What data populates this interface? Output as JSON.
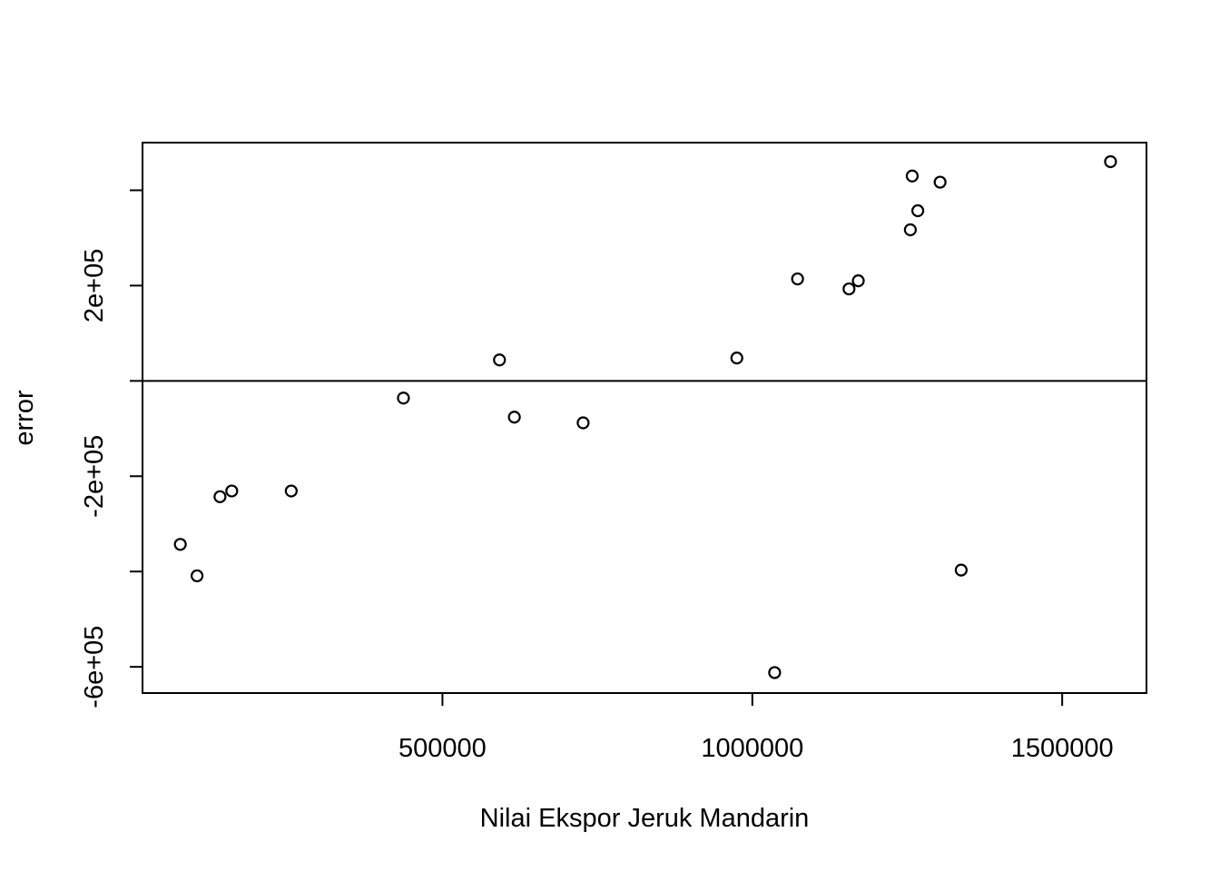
{
  "chart_data": {
    "type": "scatter",
    "title": "",
    "xlabel": "Nilai Ekspor Jeruk Mandarin",
    "ylabel": "error",
    "xlim": [
      16000,
      1636000
    ],
    "ylim": [
      -655000,
      500000
    ],
    "x_ticks": [
      500000,
      1000000,
      1500000
    ],
    "x_tick_labels": [
      "500000",
      "1000000",
      "1500000"
    ],
    "y_ticks": [
      -600000,
      -400000,
      -200000,
      0,
      200000,
      400000
    ],
    "y_tick_labels": [
      "-6e+05",
      "",
      "-2e+05",
      "",
      "2e+05",
      ""
    ],
    "reference_line_y": 0,
    "grid": false,
    "legend": "none",
    "marker": "open-circle",
    "color": "#000000",
    "points": [
      {
        "x": 77000,
        "y": -343000
      },
      {
        "x": 104000,
        "y": -409000
      },
      {
        "x": 141000,
        "y": -243000
      },
      {
        "x": 160000,
        "y": -231000
      },
      {
        "x": 256000,
        "y": -231000
      },
      {
        "x": 437000,
        "y": -36000
      },
      {
        "x": 592000,
        "y": 44000
      },
      {
        "x": 616000,
        "y": -76000
      },
      {
        "x": 727000,
        "y": -88000
      },
      {
        "x": 975000,
        "y": 48000
      },
      {
        "x": 1036000,
        "y": -612000
      },
      {
        "x": 1073000,
        "y": 214000
      },
      {
        "x": 1156000,
        "y": 193000
      },
      {
        "x": 1171000,
        "y": 210000
      },
      {
        "x": 1255000,
        "y": 317000
      },
      {
        "x": 1258000,
        "y": 430000
      },
      {
        "x": 1267000,
        "y": 357000
      },
      {
        "x": 1303000,
        "y": 417000
      },
      {
        "x": 1337000,
        "y": -397000
      },
      {
        "x": 1578000,
        "y": 460000
      }
    ]
  }
}
